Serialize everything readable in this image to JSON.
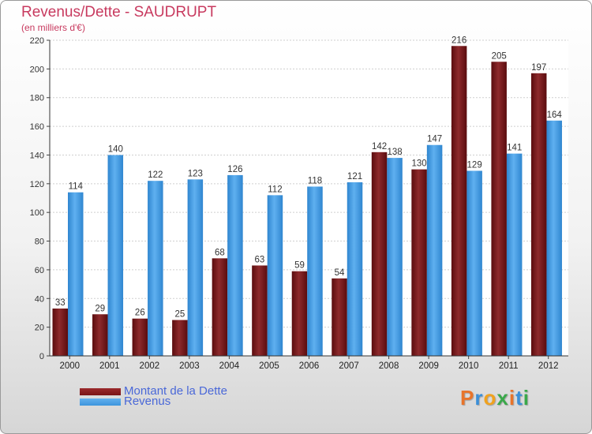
{
  "title": "Revenus/Dette - SAUDRUPT",
  "subtitle": "(en milliers d'€)",
  "colors": {
    "dette": "#7a1416",
    "revenus": "#3d95dd",
    "title": "#c83a5f",
    "legend_text": "#4a68d8"
  },
  "legend": [
    {
      "label": "Montant de la Dette",
      "color": "#7a1416"
    },
    {
      "label": "Revenus",
      "color": "#3d95dd"
    }
  ],
  "logo": {
    "text": "Proxiti",
    "letter_colors": [
      "#e8742a",
      "#3b8fd8",
      "#f0a21e",
      "#3aa84a",
      "#e8742a",
      "#3b8fd8",
      "#3aa84a"
    ]
  },
  "chart_data": {
    "type": "bar",
    "title": "Revenus/Dette - SAUDRUPT",
    "subtitle": "(en milliers d'€)",
    "categories": [
      "2000",
      "2001",
      "2002",
      "2003",
      "2004",
      "2005",
      "2006",
      "2007",
      "2008",
      "2009",
      "2010",
      "2011",
      "2012"
    ],
    "series": [
      {
        "name": "Montant de la Dette",
        "values": [
          33,
          29,
          26,
          25,
          68,
          63,
          59,
          54,
          142,
          130,
          216,
          205,
          197
        ]
      },
      {
        "name": "Revenus",
        "values": [
          114,
          140,
          122,
          123,
          126,
          112,
          118,
          121,
          138,
          147,
          129,
          141,
          164
        ]
      }
    ],
    "ylim": [
      0,
      220
    ],
    "yticks": [
      0,
      20,
      40,
      60,
      80,
      100,
      120,
      140,
      160,
      180,
      200,
      220
    ],
    "grid": true,
    "legend_position": "bottom-left"
  }
}
